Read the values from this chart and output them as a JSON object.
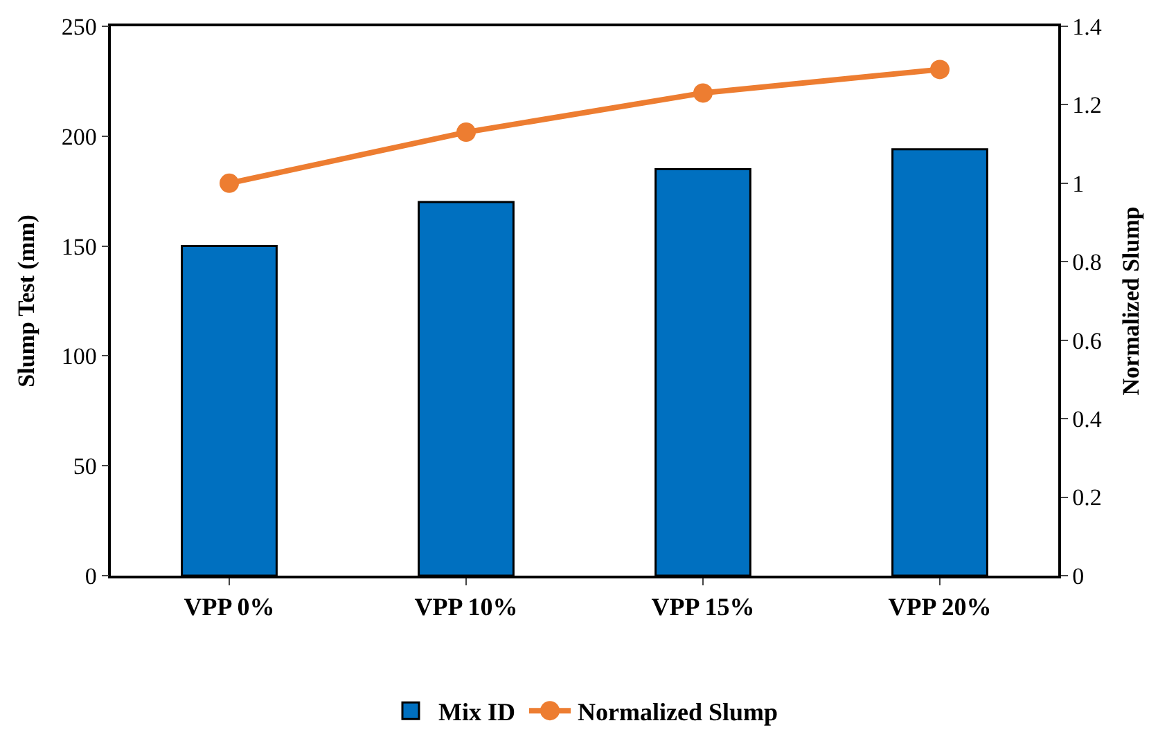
{
  "chart_data": {
    "type": "bar",
    "categories": [
      "VPP 0%",
      "VPP 10%",
      "VPP 15%",
      "VPP 20%"
    ],
    "ylabel": "Slump Test (mm)",
    "y2label": "Normalized Slump",
    "series": [
      {
        "name": "Mix ID",
        "color": "#0070c0",
        "values": [
          150,
          170,
          185,
          194
        ]
      },
      {
        "name": "Normalized Slump",
        "type": "line",
        "axis": "y2",
        "color": "#ed7d31",
        "values": [
          1.0,
          1.13,
          1.23,
          1.29
        ]
      }
    ],
    "ylim": [
      0,
      250
    ],
    "yticks": [
      0,
      50,
      100,
      150,
      200,
      250
    ],
    "y2lim": [
      0,
      1.4
    ],
    "y2ticks": [
      0,
      {
        "value": 0.2,
        "label": "0.2"
      },
      {
        "value": 0.4,
        "label": "0.4"
      },
      {
        "value": 0.6,
        "label": "0.6"
      },
      {
        "value": 0.8,
        "label": "0.8"
      },
      1,
      {
        "value": 1.2,
        "label": "1.2"
      },
      {
        "value": 1.4,
        "label": "1.4"
      }
    ],
    "legend": "bottom",
    "marker": "circle",
    "line_style": "solid"
  }
}
